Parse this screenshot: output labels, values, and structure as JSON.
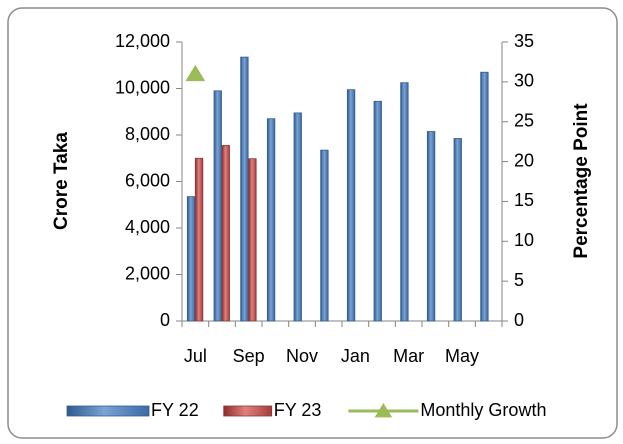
{
  "chart_data": {
    "type": "bar",
    "y_label": "Crore Taka",
    "y2_label": "Percentage Point",
    "categories": [
      "Jul",
      null,
      "Sep",
      null,
      "Nov",
      null,
      "Jan",
      null,
      "Mar",
      null,
      "May",
      null
    ],
    "series": [
      {
        "name": "FY 22",
        "color": "#4f81bd",
        "type": "bar",
        "values": [
          5350,
          9900,
          11350,
          8700,
          8950,
          7350,
          9950,
          9450,
          10250,
          8150,
          7850,
          10700
        ]
      },
      {
        "name": "FY 23",
        "color": "#c0504d",
        "type": "bar",
        "values": [
          7000,
          7550,
          6980,
          null,
          null,
          null,
          null,
          null,
          null,
          null,
          null,
          null
        ]
      },
      {
        "name": "Monthly Growth",
        "color": "#9bbb59",
        "type": "line",
        "axis": "y2",
        "values": [
          31,
          null,
          null,
          null,
          null,
          null,
          null,
          null,
          null,
          null,
          null,
          null
        ]
      }
    ],
    "ylim": [
      0,
      12000
    ],
    "yticks": [
      0,
      {
        "value": 2000,
        "label": "2,000"
      },
      {
        "value": 4000,
        "label": "4,000"
      },
      {
        "value": 6000,
        "label": "6,000"
      },
      {
        "value": 8000,
        "label": "8,000"
      },
      {
        "value": 10000,
        "label": "10,000"
      },
      {
        "value": 12000,
        "label": "12,000"
      }
    ],
    "y2lim": [
      0,
      35
    ],
    "y2ticks": [
      0,
      5,
      10,
      15,
      20,
      25,
      30,
      35
    ],
    "legend": "bottom"
  }
}
